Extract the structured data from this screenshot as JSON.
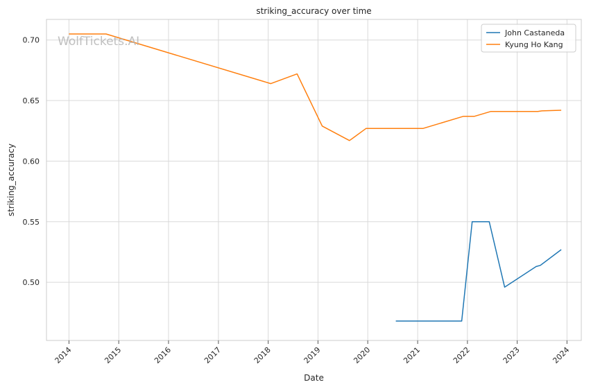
{
  "chart_data": {
    "type": "line",
    "title": "striking_accuracy over time",
    "xlabel": "Date",
    "ylabel": "striking_accuracy",
    "x_ticks": [
      "2014",
      "2015",
      "2016",
      "2017",
      "2018",
      "2019",
      "2020",
      "2021",
      "2022",
      "2023",
      "2024"
    ],
    "y_ticks": [
      "0.50",
      "0.55",
      "0.60",
      "0.65",
      "0.70"
    ],
    "xlim": [
      "2013-07-20",
      "2024-04-15"
    ],
    "ylim": [
      0.452,
      0.717
    ],
    "grid": true,
    "legend_position": "top-right",
    "watermark": "WolfTickets.AI",
    "series": [
      {
        "name": "John Castaneda",
        "color": "#1f77b4",
        "points": [
          {
            "x": "2020-07-25",
            "y": 0.468
          },
          {
            "x": "2021-11-20",
            "y": 0.468
          },
          {
            "x": "2022-02-05",
            "y": 0.55
          },
          {
            "x": "2022-06-10",
            "y": 0.55
          },
          {
            "x": "2022-10-01",
            "y": 0.496
          },
          {
            "x": "2023-05-20",
            "y": 0.513
          },
          {
            "x": "2023-06-20",
            "y": 0.514
          },
          {
            "x": "2023-11-20",
            "y": 0.527
          }
        ]
      },
      {
        "name": "Kyung Ho Kang",
        "color": "#ff7f0e",
        "points": [
          {
            "x": "2014-01-01",
            "y": 0.705
          },
          {
            "x": "2014-09-30",
            "y": 0.705
          },
          {
            "x": "2018-01-20",
            "y": 0.664
          },
          {
            "x": "2018-08-01",
            "y": 0.672
          },
          {
            "x": "2019-02-01",
            "y": 0.629
          },
          {
            "x": "2019-08-20",
            "y": 0.617
          },
          {
            "x": "2019-12-20",
            "y": 0.627
          },
          {
            "x": "2021-02-10",
            "y": 0.627
          },
          {
            "x": "2021-12-01",
            "y": 0.637
          },
          {
            "x": "2022-02-20",
            "y": 0.637
          },
          {
            "x": "2022-06-20",
            "y": 0.641
          },
          {
            "x": "2023-06-01",
            "y": 0.641
          },
          {
            "x": "2023-07-01",
            "y": 0.6415
          },
          {
            "x": "2023-11-20",
            "y": 0.642
          }
        ]
      }
    ]
  }
}
